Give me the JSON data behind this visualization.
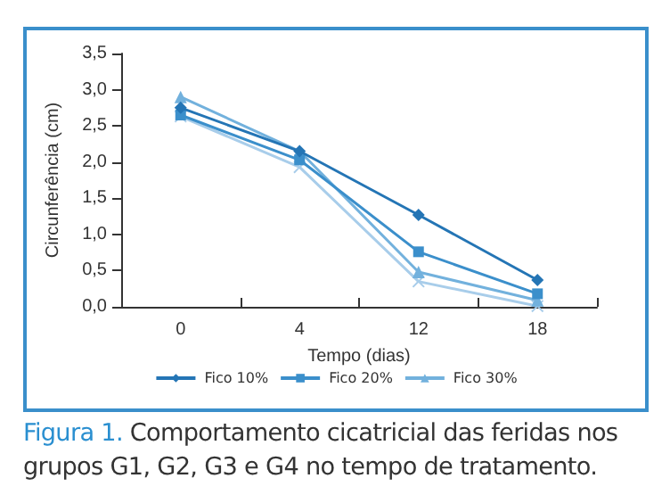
{
  "chart_data": {
    "type": "line",
    "xlabel": "Tempo (dias)",
    "ylabel": "Circunferência (cm)",
    "categories": [
      "0",
      "4",
      "12",
      "18"
    ],
    "ylim": [
      0,
      3.5
    ],
    "yticks": [
      {
        "value": 0,
        "label": "0,0"
      },
      {
        "value": 0.5,
        "label": "0,5"
      },
      {
        "value": 1,
        "label": "1,0"
      },
      {
        "value": 1.5,
        "label": "1,5"
      },
      {
        "value": 2,
        "label": "2,0"
      },
      {
        "value": 2.5,
        "label": "2,5"
      },
      {
        "value": 3,
        "label": "3,0"
      },
      {
        "value": 3.5,
        "label": "3,5"
      }
    ],
    "series": [
      {
        "name": "Fico 10%",
        "color": "#2475b5",
        "marker": "diamond",
        "values": [
          2.75,
          2.15,
          1.27,
          0.37
        ]
      },
      {
        "name": "Fico 20%",
        "color": "#3b8fcb",
        "marker": "square",
        "values": [
          2.65,
          2.03,
          0.76,
          0.18
        ]
      },
      {
        "name": "Fico 30%",
        "color": "#72b1dd",
        "marker": "triangle",
        "values": [
          2.9,
          2.15,
          0.48,
          0.09
        ]
      },
      {
        "color": "#a8cdea",
        "marker": "cross",
        "values": [
          2.63,
          1.93,
          0.35,
          0.01
        ]
      }
    ],
    "grid": false,
    "legend": "bottom",
    "line_style": "solid",
    "annotations": [
      "Figura 1.",
      "Comportamento cicatricial das feridas nos grupos G1, G2, G3 e G4 no tempo de tratamento."
    ]
  }
}
